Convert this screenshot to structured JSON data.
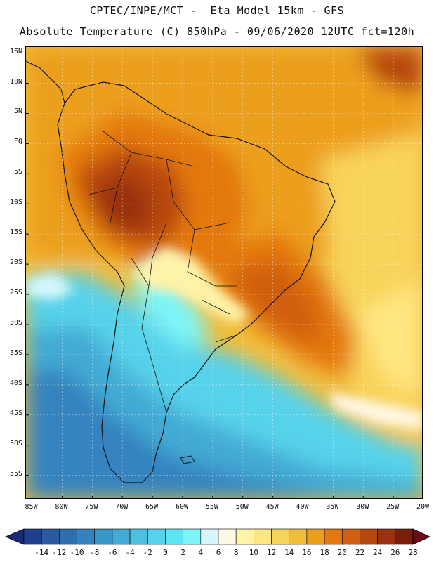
{
  "header": {
    "line1": "CPTEC/INPE/MCT -  Eta Model 15km - GFS",
    "line2": "Absolute Temperature (C) 850hPa - 09/06/2020 12UTC fct=120h"
  },
  "map": {
    "lat_labels": [
      "15N",
      "10N",
      "5N",
      "EQ",
      "5S",
      "10S",
      "15S",
      "20S",
      "25S",
      "30S",
      "35S",
      "40S",
      "45S",
      "50S",
      "55S"
    ],
    "lon_labels": [
      "85W",
      "80W",
      "75W",
      "70W",
      "65W",
      "60W",
      "55W",
      "50W",
      "45W",
      "40W",
      "35W",
      "30W",
      "25W",
      "20W"
    ],
    "lat_values": [
      15,
      10,
      5,
      0,
      -5,
      -10,
      -15,
      -20,
      -25,
      -30,
      -35,
      -40,
      -45,
      -50,
      -55
    ],
    "lon_values": [
      -85,
      -80,
      -75,
      -70,
      -65,
      -60,
      -55,
      -50,
      -45,
      -40,
      -35,
      -30,
      -25,
      -20
    ],
    "extent": {
      "lon_min": -86,
      "lon_max": -20,
      "lat_min": -59,
      "lat_max": 16
    }
  },
  "colorbar": {
    "labels": [
      "-14",
      "-12",
      "-10",
      "-8",
      "-6",
      "-4",
      "-2",
      "0",
      "2",
      "4",
      "6",
      "8",
      "10",
      "12",
      "14",
      "16",
      "18",
      "20",
      "22",
      "24",
      "26",
      "28"
    ],
    "colors": [
      "#1f3f8f",
      "#2a5aa0",
      "#2f6fb0",
      "#3483bf",
      "#3a97c9",
      "#42aad4",
      "#4dbfe0",
      "#56d2ea",
      "#5ee3f2",
      "#7df4f7",
      "#d6f6fb",
      "#fff8e6",
      "#fff3a8",
      "#ffe680",
      "#f8d35a",
      "#f0bd3a",
      "#ec9f1a",
      "#e3780c",
      "#d05f10",
      "#b74710",
      "#9a3210",
      "#7a1e0c"
    ],
    "under_color": "#1a2a7a",
    "over_color": "#6a0a18"
  }
}
